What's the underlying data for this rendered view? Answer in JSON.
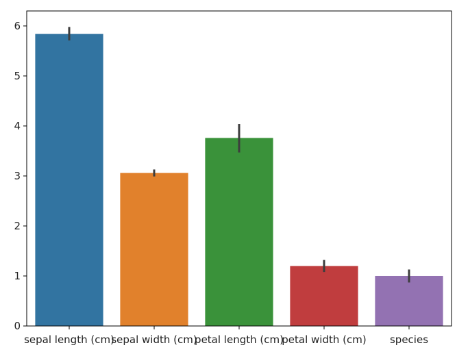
{
  "chart_data": {
    "type": "bar",
    "categories": [
      "sepal length (cm)",
      "sepal width (cm)",
      "petal length (cm)",
      "petal width (cm)",
      "species"
    ],
    "values": [
      5.84,
      3.06,
      3.76,
      1.2,
      1.0
    ],
    "error_bars": [
      [
        5.71,
        5.98
      ],
      [
        2.99,
        3.13
      ],
      [
        3.47,
        4.04
      ],
      [
        1.08,
        1.32
      ],
      [
        0.87,
        1.13
      ]
    ],
    "colors": [
      "#3274a1",
      "#e1812c",
      "#3a923a",
      "#c03d3e",
      "#9372b2"
    ],
    "error_color": "#3d3d3d",
    "yticks": [
      "0",
      "1",
      "2",
      "3",
      "4",
      "5",
      "6"
    ],
    "ylim": [
      0,
      6.3
    ],
    "title": "",
    "xlabel": "",
    "ylabel": "",
    "grid": false,
    "legend": "none"
  }
}
